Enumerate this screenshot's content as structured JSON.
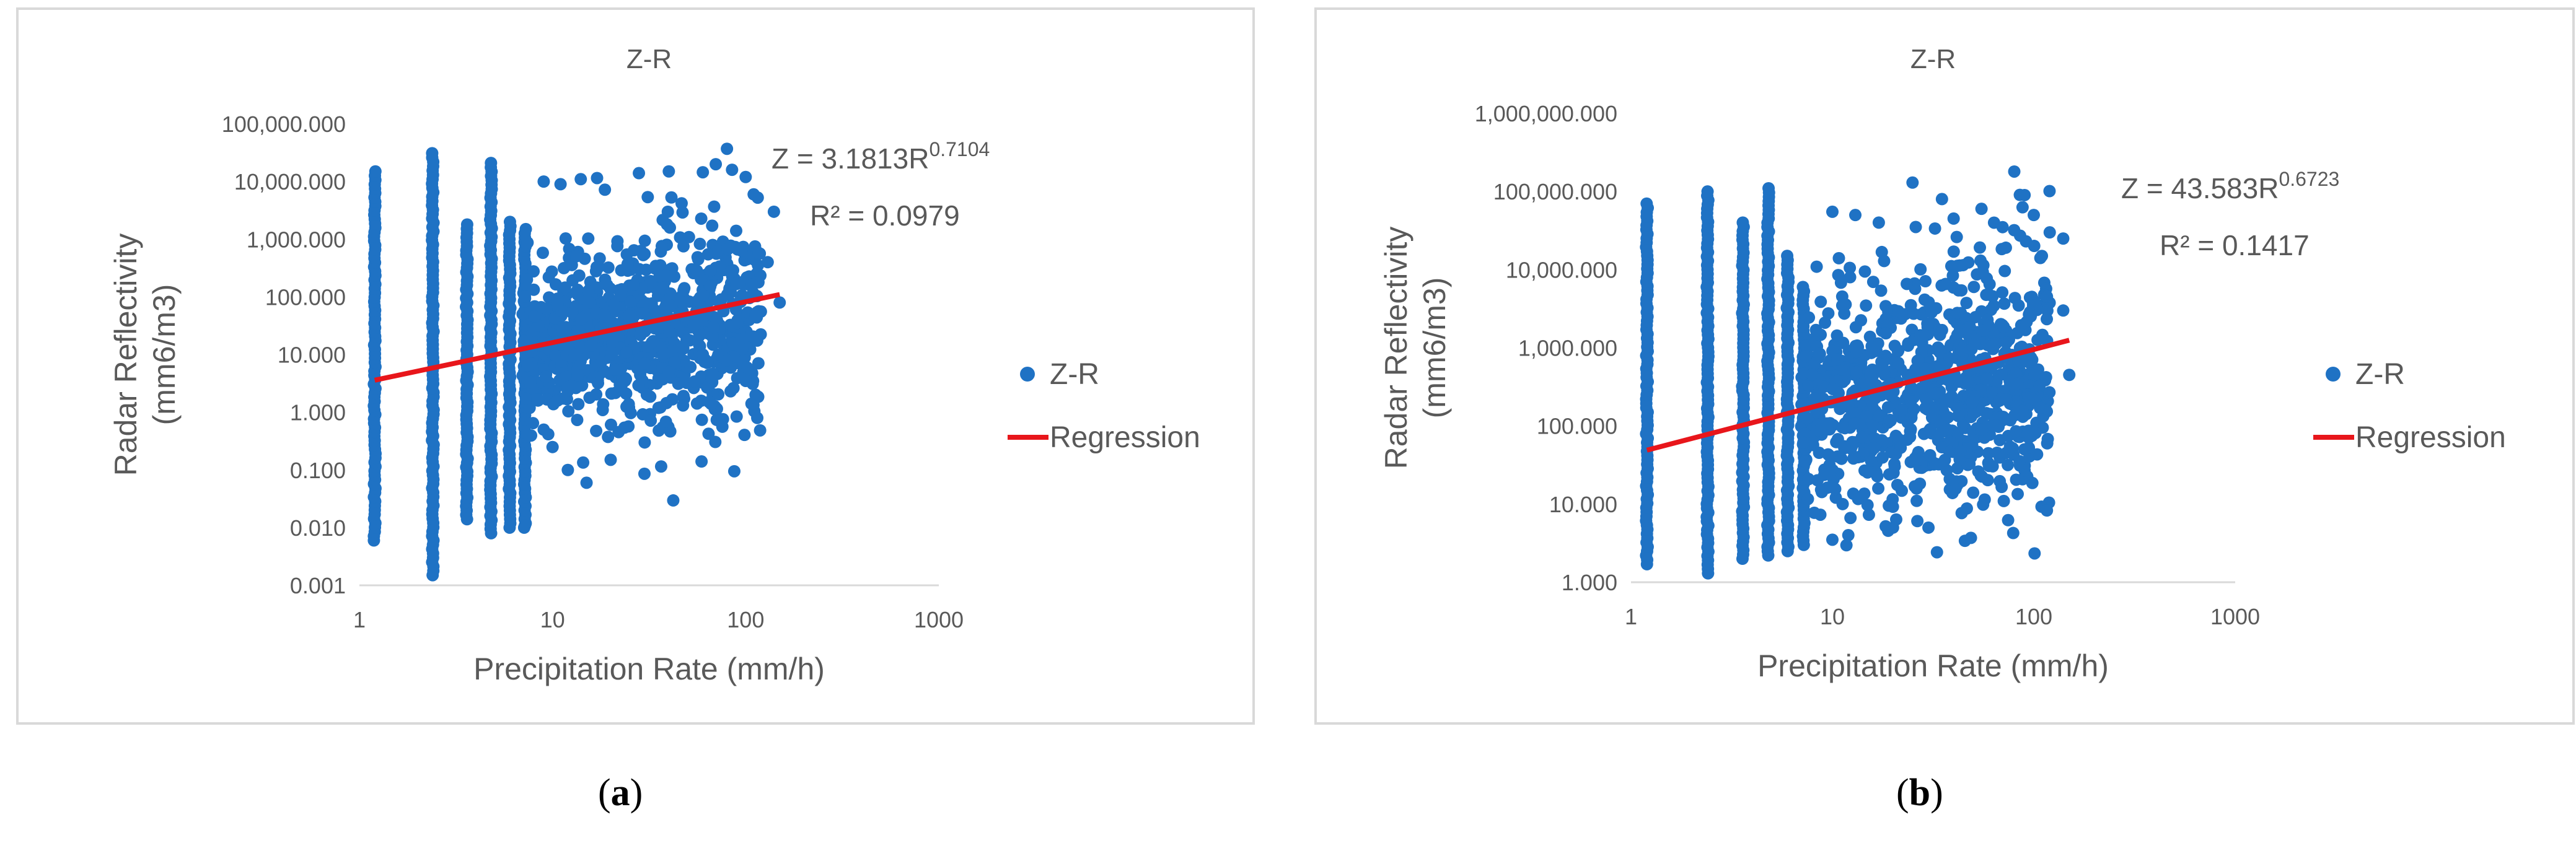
{
  "chart_data": [
    {
      "type": "scatter",
      "title": "Z-R",
      "xlabel": "Precipitation Rate (mm/h)",
      "ylabel_lines": [
        "Radar Reflectivity",
        "(mm6/m3)"
      ],
      "x_scale": "log",
      "y_scale": "log",
      "xlim": [
        1,
        1000
      ],
      "ylim": [
        0.001,
        100000
      ],
      "x_ticks": [
        "1",
        "10",
        "100",
        "1000"
      ],
      "y_ticks": [
        "0.001",
        "0.010",
        "0.100",
        "1.000",
        "10.000",
        "100.000",
        "1,000.000",
        "10,000.000",
        "100,000.000"
      ],
      "legend_position": "right",
      "equation_prefix": "Z = 3.1813R",
      "equation_exponent": "0.7104",
      "r_squared": "R² = 0.0979",
      "colors": {
        "points": "#1f72c4",
        "regression": "#e8161b",
        "text": "#595959",
        "frame": "#d9d9d9"
      },
      "series": [
        {
          "name": "Z-R",
          "kind": "scatter",
          "columns": [
            {
              "x": 1.2,
              "ymin": 0.006,
              "ymax": 15000
            },
            {
              "x": 2.4,
              "ymin": 0.0015,
              "ymax": 31000
            },
            {
              "x": 3.6,
              "ymin": 0.014,
              "ymax": 1800
            },
            {
              "x": 4.8,
              "ymin": 0.008,
              "ymax": 21000
            },
            {
              "x": 6.0,
              "ymin": 0.01,
              "ymax": 2000
            },
            {
              "x": 7.2,
              "ymin": 0.01,
              "ymax": 1500
            }
          ],
          "highlights": [
            {
              "x": 9,
              "y": 10000
            },
            {
              "x": 11,
              "y": 9000
            },
            {
              "x": 14,
              "y": 11000
            },
            {
              "x": 17,
              "y": 11500
            },
            {
              "x": 28,
              "y": 14000
            },
            {
              "x": 40,
              "y": 15000
            },
            {
              "x": 60,
              "y": 14500
            },
            {
              "x": 70,
              "y": 20000
            },
            {
              "x": 80,
              "y": 37000
            },
            {
              "x": 85,
              "y": 16000
            },
            {
              "x": 100,
              "y": 12000
            },
            {
              "x": 110,
              "y": 6000
            },
            {
              "x": 140,
              "y": 3000
            },
            {
              "x": 130,
              "y": 400
            },
            {
              "x": 150,
              "y": 80
            },
            {
              "x": 100,
              "y": 3.5
            },
            {
              "x": 80,
              "y": 8
            },
            {
              "x": 60,
              "y": 10
            },
            {
              "x": 40,
              "y": 5
            },
            {
              "x": 30,
              "y": 0.3
            },
            {
              "x": 15,
              "y": 0.06
            },
            {
              "x": 20,
              "y": 0.15
            },
            {
              "x": 12,
              "y": 0.1
            },
            {
              "x": 10,
              "y": 0.25
            },
            {
              "x": 9,
              "y": 0.5
            },
            {
              "x": 7.2,
              "y": 0.011
            }
          ],
          "cloud": {
            "xmin": 7,
            "xmax": 120,
            "center_log_x": 1.3,
            "center_log_y": 1.3
          }
        },
        {
          "name": "Regression",
          "kind": "line",
          "points": [
            {
              "x": 1.2,
              "y": 3.6
            },
            {
              "x": 150,
              "y": 110
            }
          ]
        }
      ]
    },
    {
      "type": "scatter",
      "title": "Z-R",
      "xlabel": "Precipitation Rate (mm/h)",
      "ylabel_lines": [
        "Radar Reflectivity",
        "(mm6/m3)"
      ],
      "x_scale": "log",
      "y_scale": "log",
      "xlim": [
        1,
        1000
      ],
      "ylim": [
        1,
        1000000
      ],
      "x_ticks": [
        "1",
        "10",
        "100",
        "1000"
      ],
      "y_ticks": [
        "1.000",
        "10.000",
        "100.000",
        "1,000.000",
        "10,000.000",
        "100,000.000",
        "1,000,000.000"
      ],
      "legend_position": "right",
      "equation_prefix": "Z = 43.583R",
      "equation_exponent": "0.6723",
      "r_squared": "R² = 0.1417",
      "colors": {
        "points": "#1f72c4",
        "regression": "#e8161b",
        "text": "#595959",
        "frame": "#d9d9d9"
      },
      "series": [
        {
          "name": "Z-R",
          "kind": "scatter",
          "columns": [
            {
              "x": 1.2,
              "ymin": 1.7,
              "ymax": 70000
            },
            {
              "x": 2.4,
              "ymin": 1.3,
              "ymax": 100000
            },
            {
              "x": 3.6,
              "ymin": 2.0,
              "ymax": 40000
            },
            {
              "x": 4.8,
              "ymin": 2.2,
              "ymax": 110000
            },
            {
              "x": 6.0,
              "ymin": 2.5,
              "ymax": 15000
            },
            {
              "x": 7.2,
              "ymin": 3.0,
              "ymax": 6000
            }
          ],
          "highlights": [
            {
              "x": 10,
              "y": 55000
            },
            {
              "x": 13,
              "y": 50000
            },
            {
              "x": 17,
              "y": 40000
            },
            {
              "x": 25,
              "y": 130000
            },
            {
              "x": 35,
              "y": 80000
            },
            {
              "x": 40,
              "y": 45000
            },
            {
              "x": 55,
              "y": 60000
            },
            {
              "x": 70,
              "y": 35000
            },
            {
              "x": 80,
              "y": 180000
            },
            {
              "x": 90,
              "y": 90000
            },
            {
              "x": 100,
              "y": 50000
            },
            {
              "x": 120,
              "y": 30000
            },
            {
              "x": 140,
              "y": 25000
            },
            {
              "x": 140,
              "y": 3000
            },
            {
              "x": 150,
              "y": 450
            },
            {
              "x": 90,
              "y": 27
            },
            {
              "x": 50,
              "y": 14
            },
            {
              "x": 30,
              "y": 5
            },
            {
              "x": 20,
              "y": 5
            },
            {
              "x": 12,
              "y": 4
            },
            {
              "x": 10,
              "y": 3.5
            }
          ],
          "cloud": {
            "xmin": 7,
            "xmax": 120,
            "center_log_x": 1.3,
            "center_log_y": 2.4
          }
        },
        {
          "name": "Regression",
          "kind": "line",
          "points": [
            {
              "x": 1.2,
              "y": 49
            },
            {
              "x": 150,
              "y": 1250
            }
          ]
        }
      ]
    }
  ],
  "captions": [
    {
      "open": "(",
      "letter": "a",
      "close": ")"
    },
    {
      "open": "(",
      "letter": "b",
      "close": ")"
    }
  ]
}
